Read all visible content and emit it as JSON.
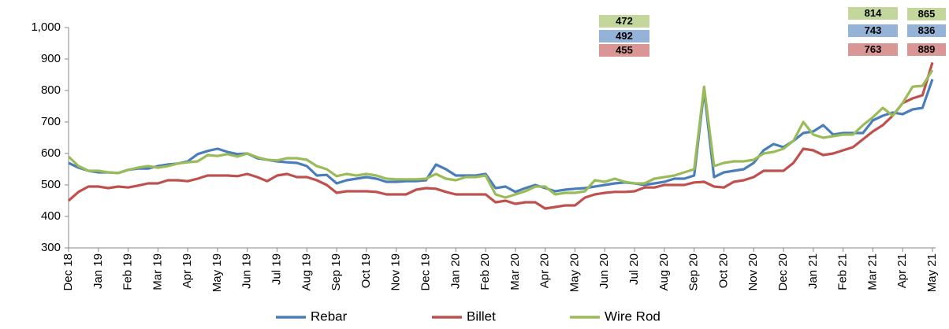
{
  "chart_data": {
    "type": "line",
    "categories": [
      "Dec 18",
      null,
      null,
      "Jan 19",
      null,
      null,
      "Feb 19",
      null,
      null,
      "Mar 19",
      null,
      null,
      "Apr 19",
      null,
      null,
      "May 19",
      null,
      null,
      "Jun 19",
      null,
      null,
      "Jul 19",
      null,
      null,
      "Aug 19",
      null,
      null,
      "Sep 19",
      null,
      null,
      "Oct 19",
      null,
      null,
      "Nov 19",
      null,
      null,
      "Dec 19",
      null,
      null,
      "Jan 20",
      null,
      null,
      "Feb 20",
      null,
      null,
      "Mar 20",
      null,
      null,
      "Apr 20",
      null,
      null,
      "May 20",
      null,
      null,
      "Jun 20",
      null,
      null,
      "Jul 20",
      null,
      null,
      "Aug 20",
      null,
      null,
      "Sep 20",
      null,
      null,
      "Oct 20",
      null,
      null,
      "Nov 20",
      null,
      null,
      "Dec 20",
      null,
      null,
      "Jan 21",
      null,
      null,
      "Feb 21",
      null,
      null,
      "Mar 21",
      null,
      null,
      "Apr 21",
      null,
      null,
      "May 21"
    ],
    "series": [
      {
        "name": "Rebar",
        "color": "#4a7ebb",
        "values": [
          570,
          555,
          545,
          540,
          540,
          538,
          548,
          552,
          552,
          560,
          565,
          568,
          575,
          598,
          608,
          615,
          605,
          598,
          600,
          585,
          580,
          575,
          572,
          570,
          560,
          530,
          532,
          505,
          515,
          520,
          525,
          520,
          510,
          510,
          512,
          512,
          515,
          565,
          550,
          530,
          530,
          530,
          535,
          490,
          495,
          478,
          490,
          500,
          490,
          480,
          485,
          488,
          490,
          495,
          500,
          505,
          508,
          505,
          500,
          505,
          510,
          520,
          520,
          530,
          800,
          525,
          540,
          545,
          550,
          570,
          610,
          630,
          620,
          640,
          665,
          670,
          690,
          660,
          665,
          665,
          665,
          705,
          720,
          730,
          725,
          740,
          745,
          836
        ]
      },
      {
        "name": "Billet",
        "color": "#c0504d",
        "values": [
          450,
          478,
          495,
          495,
          490,
          495,
          492,
          498,
          505,
          505,
          515,
          515,
          512,
          520,
          530,
          530,
          530,
          528,
          535,
          525,
          512,
          530,
          535,
          525,
          525,
          515,
          500,
          475,
          480,
          480,
          480,
          478,
          470,
          470,
          470,
          485,
          490,
          488,
          478,
          470,
          470,
          470,
          470,
          445,
          450,
          440,
          445,
          445,
          425,
          430,
          435,
          435,
          460,
          470,
          475,
          478,
          478,
          480,
          492,
          492,
          500,
          500,
          500,
          508,
          510,
          495,
          492,
          510,
          515,
          525,
          545,
          545,
          545,
          570,
          615,
          610,
          595,
          600,
          610,
          620,
          645,
          670,
          690,
          720,
          760,
          775,
          785,
          889
        ]
      },
      {
        "name": "Wire Rod",
        "color": "#9bbb59",
        "values": [
          590,
          560,
          545,
          545,
          540,
          538,
          548,
          555,
          560,
          555,
          560,
          568,
          572,
          575,
          595,
          592,
          598,
          590,
          600,
          588,
          580,
          578,
          585,
          585,
          580,
          560,
          550,
          528,
          535,
          530,
          535,
          530,
          520,
          518,
          518,
          518,
          520,
          535,
          520,
          515,
          525,
          525,
          530,
          470,
          460,
          470,
          480,
          495,
          495,
          470,
          475,
          475,
          480,
          515,
          510,
          520,
          510,
          505,
          505,
          520,
          525,
          530,
          540,
          550,
          812,
          560,
          570,
          575,
          575,
          580,
          600,
          605,
          615,
          640,
          700,
          660,
          650,
          655,
          660,
          660,
          690,
          715,
          745,
          720,
          760,
          812,
          815,
          865
        ]
      }
    ],
    "annotations": [
      [
        472,
        492,
        455
      ],
      [
        814,
        743,
        763
      ],
      [
        865,
        836,
        889
      ]
    ],
    "ylim": [
      300,
      1000
    ],
    "yticks": [
      {
        "value": 1000,
        "label": "1,000"
      },
      900,
      800,
      700,
      600,
      500,
      400,
      300
    ],
    "legend": "bottom"
  }
}
